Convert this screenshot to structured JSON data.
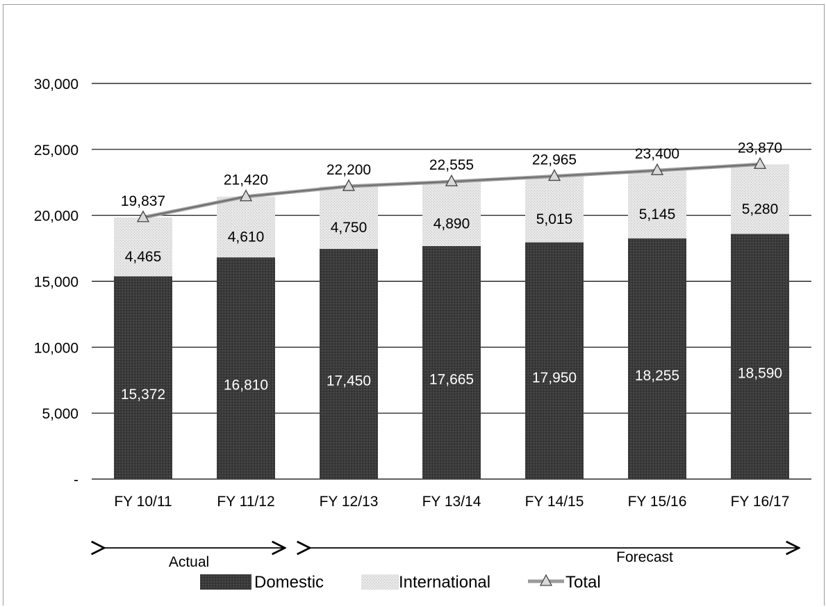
{
  "chart_data": {
    "type": "bar",
    "stacked": true,
    "title": "",
    "xlabel": "",
    "ylabel": "",
    "ylim": [
      0,
      30000
    ],
    "yticks": [
      0,
      5000,
      10000,
      15000,
      20000,
      25000,
      30000
    ],
    "ytick_labels": [
      "-",
      "5,000",
      "10,000",
      "15,000",
      "20,000",
      "25,000",
      "30,000"
    ],
    "grid": true,
    "categories": [
      "FY 10/11",
      "FY 11/12",
      "FY 12/13",
      "FY 13/14",
      "FY 14/15",
      "FY 15/16",
      "FY 16/17"
    ],
    "series": [
      {
        "name": "Domestic",
        "kind": "bar",
        "color": "#3a3a3a",
        "values": [
          15372,
          16810,
          17450,
          17665,
          17950,
          18255,
          18590
        ],
        "labels": [
          "15,372",
          "16,810",
          "17,450",
          "17,665",
          "17,950",
          "18,255",
          "18,590"
        ]
      },
      {
        "name": "International",
        "kind": "bar",
        "color": "#d9d9d9",
        "values": [
          4465,
          4610,
          4750,
          4890,
          5015,
          5145,
          5280
        ],
        "labels": [
          "4,465",
          "4,610",
          "4,750",
          "4,890",
          "5,015",
          "5,145",
          "5,280"
        ]
      },
      {
        "name": "Total",
        "kind": "line",
        "color": "#8a8a8a",
        "values": [
          19837,
          21420,
          22200,
          22555,
          22965,
          23400,
          23870
        ],
        "labels": [
          "19,837",
          "21,420",
          "22,200",
          "22,555",
          "22,965",
          "23,400",
          "23,870"
        ]
      }
    ],
    "legend": {
      "position": "bottom",
      "entries": [
        "Domestic",
        "International",
        "Total"
      ]
    },
    "annotations": [
      {
        "text": "Actual",
        "from_category": 0,
        "to_category": 1
      },
      {
        "text": "Forecast",
        "from_category": 2,
        "to_category": 6
      }
    ]
  }
}
